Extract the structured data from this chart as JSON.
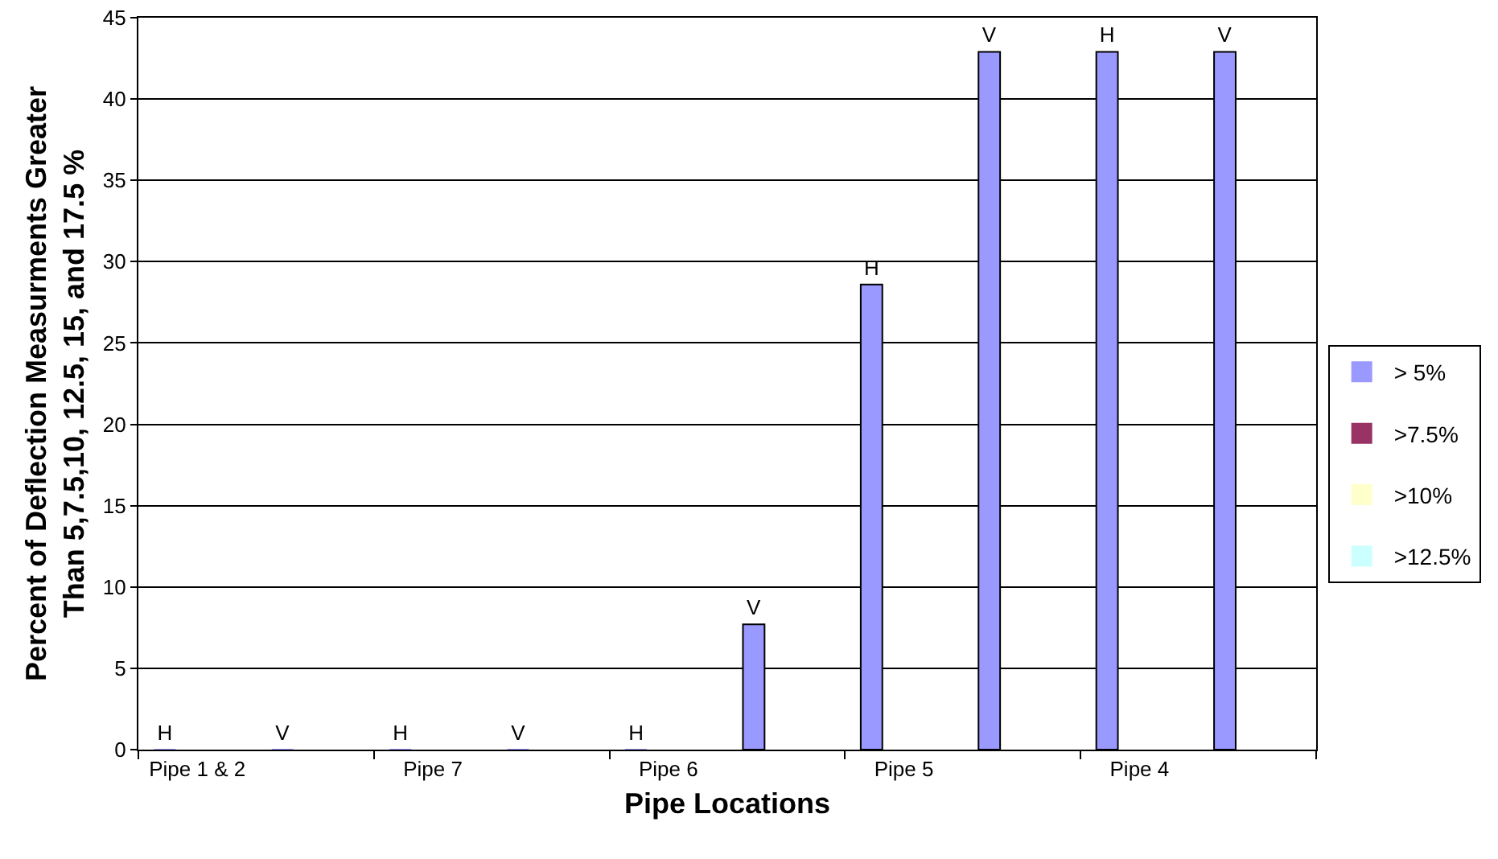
{
  "chart_data": {
    "type": "bar",
    "xlabel": "Pipe Locations",
    "ylabel": "Percent of Deflection Measurments Greater\nThan 5,7.5,10, 12.5, 15, and 17.5 %",
    "categories": [
      "Pipe 1 & 2",
      null,
      "Pipe 7",
      null,
      "Pipe 6",
      null,
      "Pipe 5",
      null,
      "Pipe 4",
      null
    ],
    "series": [
      {
        "name": "> 5%",
        "color": "#9999ff",
        "values": [
          0,
          0,
          0,
          0,
          0,
          7.7,
          28.6,
          42.9,
          42.9,
          42.9
        ],
        "value_labels": [
          "H",
          "V",
          "H",
          "V",
          "H",
          "V",
          "H",
          "V",
          "H",
          "V"
        ]
      },
      {
        "name": ">7.5%",
        "color": "#993366",
        "values": [
          null,
          null,
          null,
          null,
          null,
          null,
          null,
          null,
          null,
          null
        ]
      },
      {
        "name": ">10%",
        "color": "#ffffcc",
        "values": [
          null,
          null,
          null,
          null,
          null,
          null,
          null,
          null,
          null,
          null
        ]
      },
      {
        "name": ">12.5%",
        "color": "#ccffff",
        "values": [
          null,
          null,
          null,
          null,
          null,
          null,
          null,
          null,
          null,
          null
        ]
      }
    ],
    "ylim": [
      0,
      45
    ],
    "yticks": [
      0,
      5,
      10,
      15,
      20,
      25,
      30,
      35,
      40,
      45
    ],
    "grid": "y",
    "legend": "right"
  }
}
